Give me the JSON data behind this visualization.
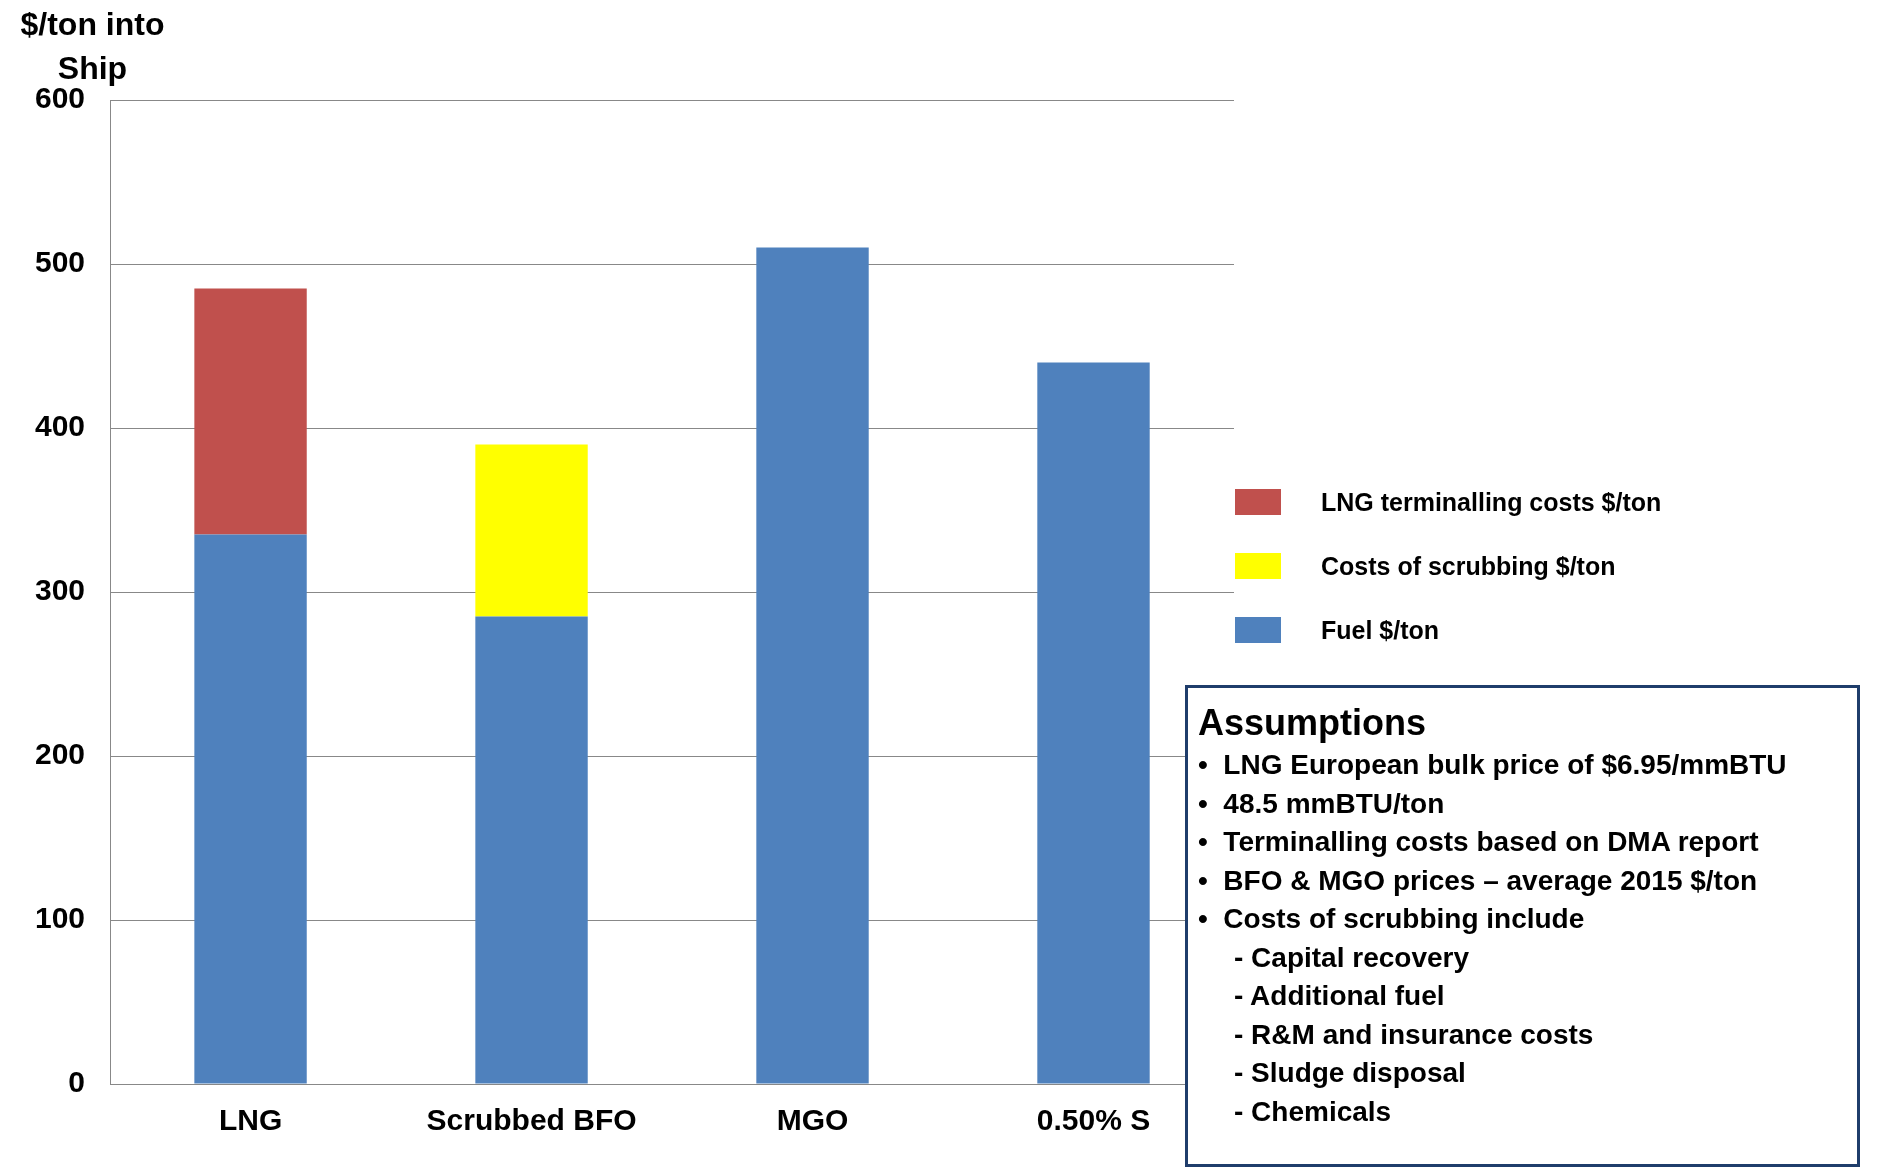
{
  "chart_data": {
    "type": "bar",
    "stacked": true,
    "ylabel": "$/ton into Ship",
    "categories": [
      "LNG",
      "Scrubbed BFO",
      "MGO",
      "0.50% S"
    ],
    "series": [
      {
        "name": "Fuel $/ton",
        "color": "#4f81bd",
        "values": [
          335,
          285,
          510,
          440
        ]
      },
      {
        "name": "Costs of scrubbing $/ton",
        "color": "#ffff00",
        "values": [
          0,
          105,
          0,
          0
        ]
      },
      {
        "name": "LNG terminalling costs $/ton",
        "color": "#c0504d",
        "values": [
          150,
          0,
          0,
          0
        ]
      }
    ],
    "ylim": [
      0,
      600
    ],
    "yticks": [
      0,
      100,
      200,
      300,
      400,
      500,
      600
    ],
    "grid": "y",
    "legend": "right",
    "annotations": [
      "Assumptions",
      "•  LNG European bulk price of $6.95/mmBTU",
      "•  48.5 mmBTU/ton",
      "•  Terminalling costs based on DMA report",
      "•  BFO & MGO prices – average 2015 $/ton",
      "•  Costs of scrubbing include",
      "- Capital recovery",
      "- Additional fuel",
      "- R&M and insurance costs",
      "- Sludge disposal",
      "- Chemicals"
    ]
  }
}
